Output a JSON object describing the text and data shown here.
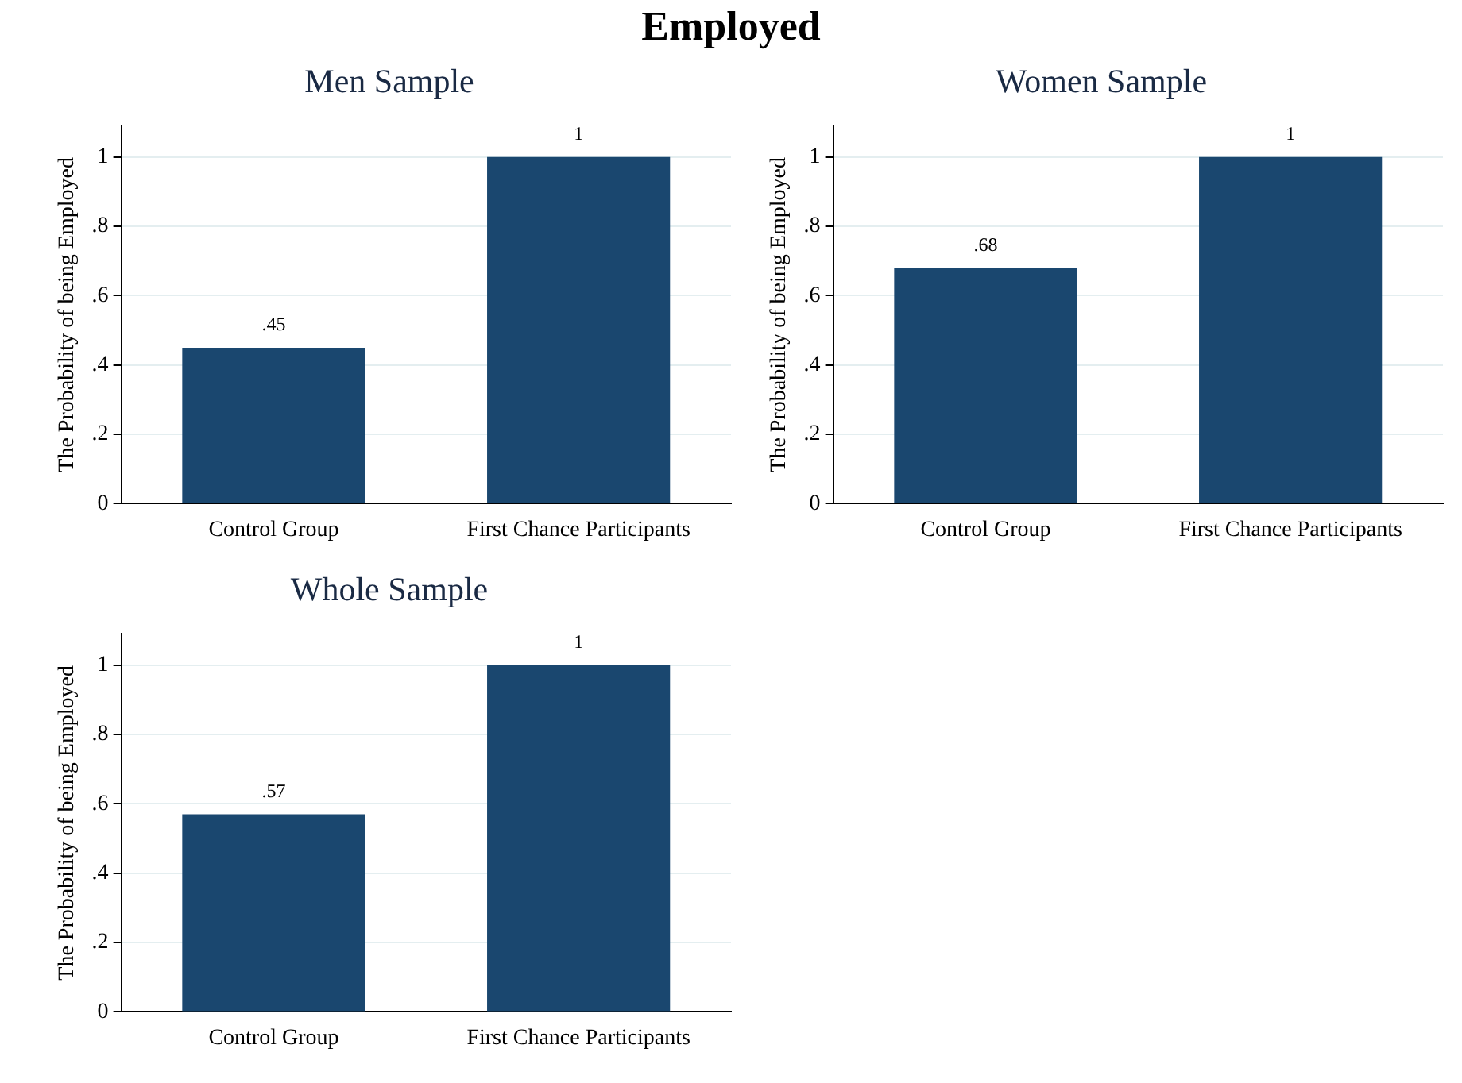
{
  "chart_data": [
    {
      "type": "bar",
      "title": "Men Sample",
      "ylabel": "The Probability of being Employed",
      "categories": [
        "Control Group",
        "First Chance Participants"
      ],
      "values": [
        0.45,
        1
      ],
      "value_labels": [
        ".45",
        "1"
      ],
      "color": "#1a476f",
      "ylim": [
        0,
        1.09
      ],
      "yticks": [
        {
          "value": 0,
          "label": "0"
        },
        {
          "value": 0.2,
          "label": ".2"
        },
        {
          "value": 0.4,
          "label": ".4"
        },
        {
          "value": 0.6,
          "label": ".6"
        },
        {
          "value": 0.8,
          "label": ".8"
        },
        {
          "value": 1,
          "label": "1"
        }
      ],
      "grid": "y",
      "legend": false,
      "annotations": [
        "Employed"
      ]
    },
    {
      "type": "bar",
      "title": "Women Sample",
      "ylabel": "The Probability of being Employed",
      "categories": [
        "Control Group",
        "First Chance Participants"
      ],
      "values": [
        0.68,
        1
      ],
      "value_labels": [
        ".68",
        "1"
      ],
      "color": "#1a476f",
      "ylim": [
        0,
        1.09
      ],
      "yticks": [
        {
          "value": 0,
          "label": "0"
        },
        {
          "value": 0.2,
          "label": ".2"
        },
        {
          "value": 0.4,
          "label": ".4"
        },
        {
          "value": 0.6,
          "label": ".6"
        },
        {
          "value": 0.8,
          "label": ".8"
        },
        {
          "value": 1,
          "label": "1"
        }
      ],
      "grid": "y",
      "legend": false
    },
    {
      "type": "bar",
      "title": "Whole Sample",
      "ylabel": "The Probability of being Employed",
      "categories": [
        "Control Group",
        "First Chance Participants"
      ],
      "values": [
        0.57,
        1
      ],
      "value_labels": [
        ".57",
        "1"
      ],
      "color": "#1a476f",
      "ylim": [
        0,
        1.09
      ],
      "yticks": [
        {
          "value": 0,
          "label": "0"
        },
        {
          "value": 0.2,
          "label": ".2"
        },
        {
          "value": 0.4,
          "label": ".4"
        },
        {
          "value": 0.6,
          "label": ".6"
        },
        {
          "value": 0.8,
          "label": ".8"
        },
        {
          "value": 1,
          "label": "1"
        }
      ],
      "grid": "y",
      "legend": false
    }
  ]
}
